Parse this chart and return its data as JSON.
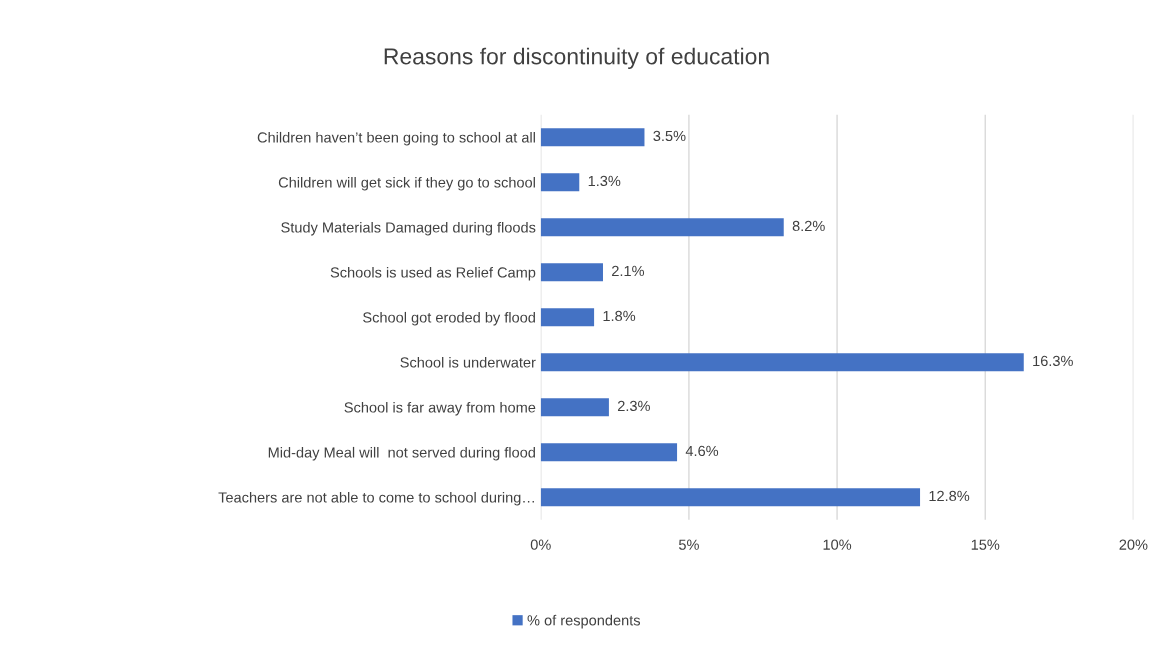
{
  "chart_data": {
    "type": "bar",
    "orientation": "horizontal",
    "title": "Reasons for discontinuity of education",
    "categories": [
      "Children haven’t been going to school at all",
      "Children will get sick if they go to school",
      "Study Materials Damaged during floods",
      "Schools is used as Relief Camp",
      "School got eroded by flood",
      "School is underwater",
      "School is far away from home",
      "Mid-day Meal will  not served during flood",
      "Teachers are not able to come to school during…"
    ],
    "series": [
      {
        "name": "% of respondents",
        "color": "#4472c4",
        "values": [
          3.5,
          1.3,
          8.2,
          2.1,
          1.8,
          16.3,
          2.3,
          4.6,
          12.8
        ],
        "value_labels": [
          "3.5%",
          "1.3%",
          "8.2%",
          "2.1%",
          "1.8%",
          "16.3%",
          "2.3%",
          "4.6%",
          "12.8%"
        ]
      }
    ],
    "xlim": [
      0,
      20
    ],
    "xticks": [
      {
        "value": 0,
        "label": "0%"
      },
      {
        "value": 5,
        "label": "5%"
      },
      {
        "value": 10,
        "label": "10%"
      },
      {
        "value": 15,
        "label": "15%"
      },
      {
        "value": 20,
        "label": "20%"
      }
    ],
    "grid": "x",
    "legend": "bottom"
  }
}
